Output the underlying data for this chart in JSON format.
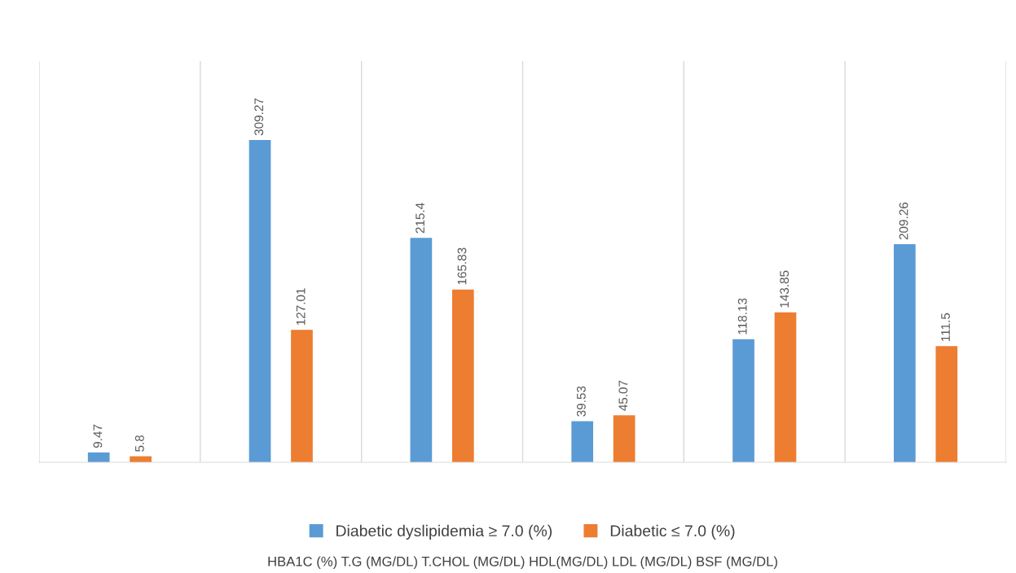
{
  "chart_data": {
    "type": "bar",
    "categories": [
      null,
      null,
      null,
      null,
      null,
      null
    ],
    "annotations": [
      "HBA1C (%) T.G (MG/DL) T.CHOL (MG/DL) HDL(MG/DL) LDL (MG/DL) BSF (MG/DL)"
    ],
    "series": [
      {
        "name": "Diabetic dyslipidemia ≥ 7.0 (%)",
        "color": "#5b9bd5",
        "values": [
          9.47,
          309.27,
          215.4,
          39.53,
          118.13,
          209.26
        ]
      },
      {
        "name": "Diabetic ≤ 7.0 (%)",
        "color": "#ed7d31",
        "values": [
          5.8,
          127.01,
          165.83,
          45.07,
          143.85,
          111.5
        ]
      }
    ],
    "ylim": [
      0,
      385
    ],
    "data_labels": true,
    "grid": "x",
    "legend": "bottom"
  }
}
